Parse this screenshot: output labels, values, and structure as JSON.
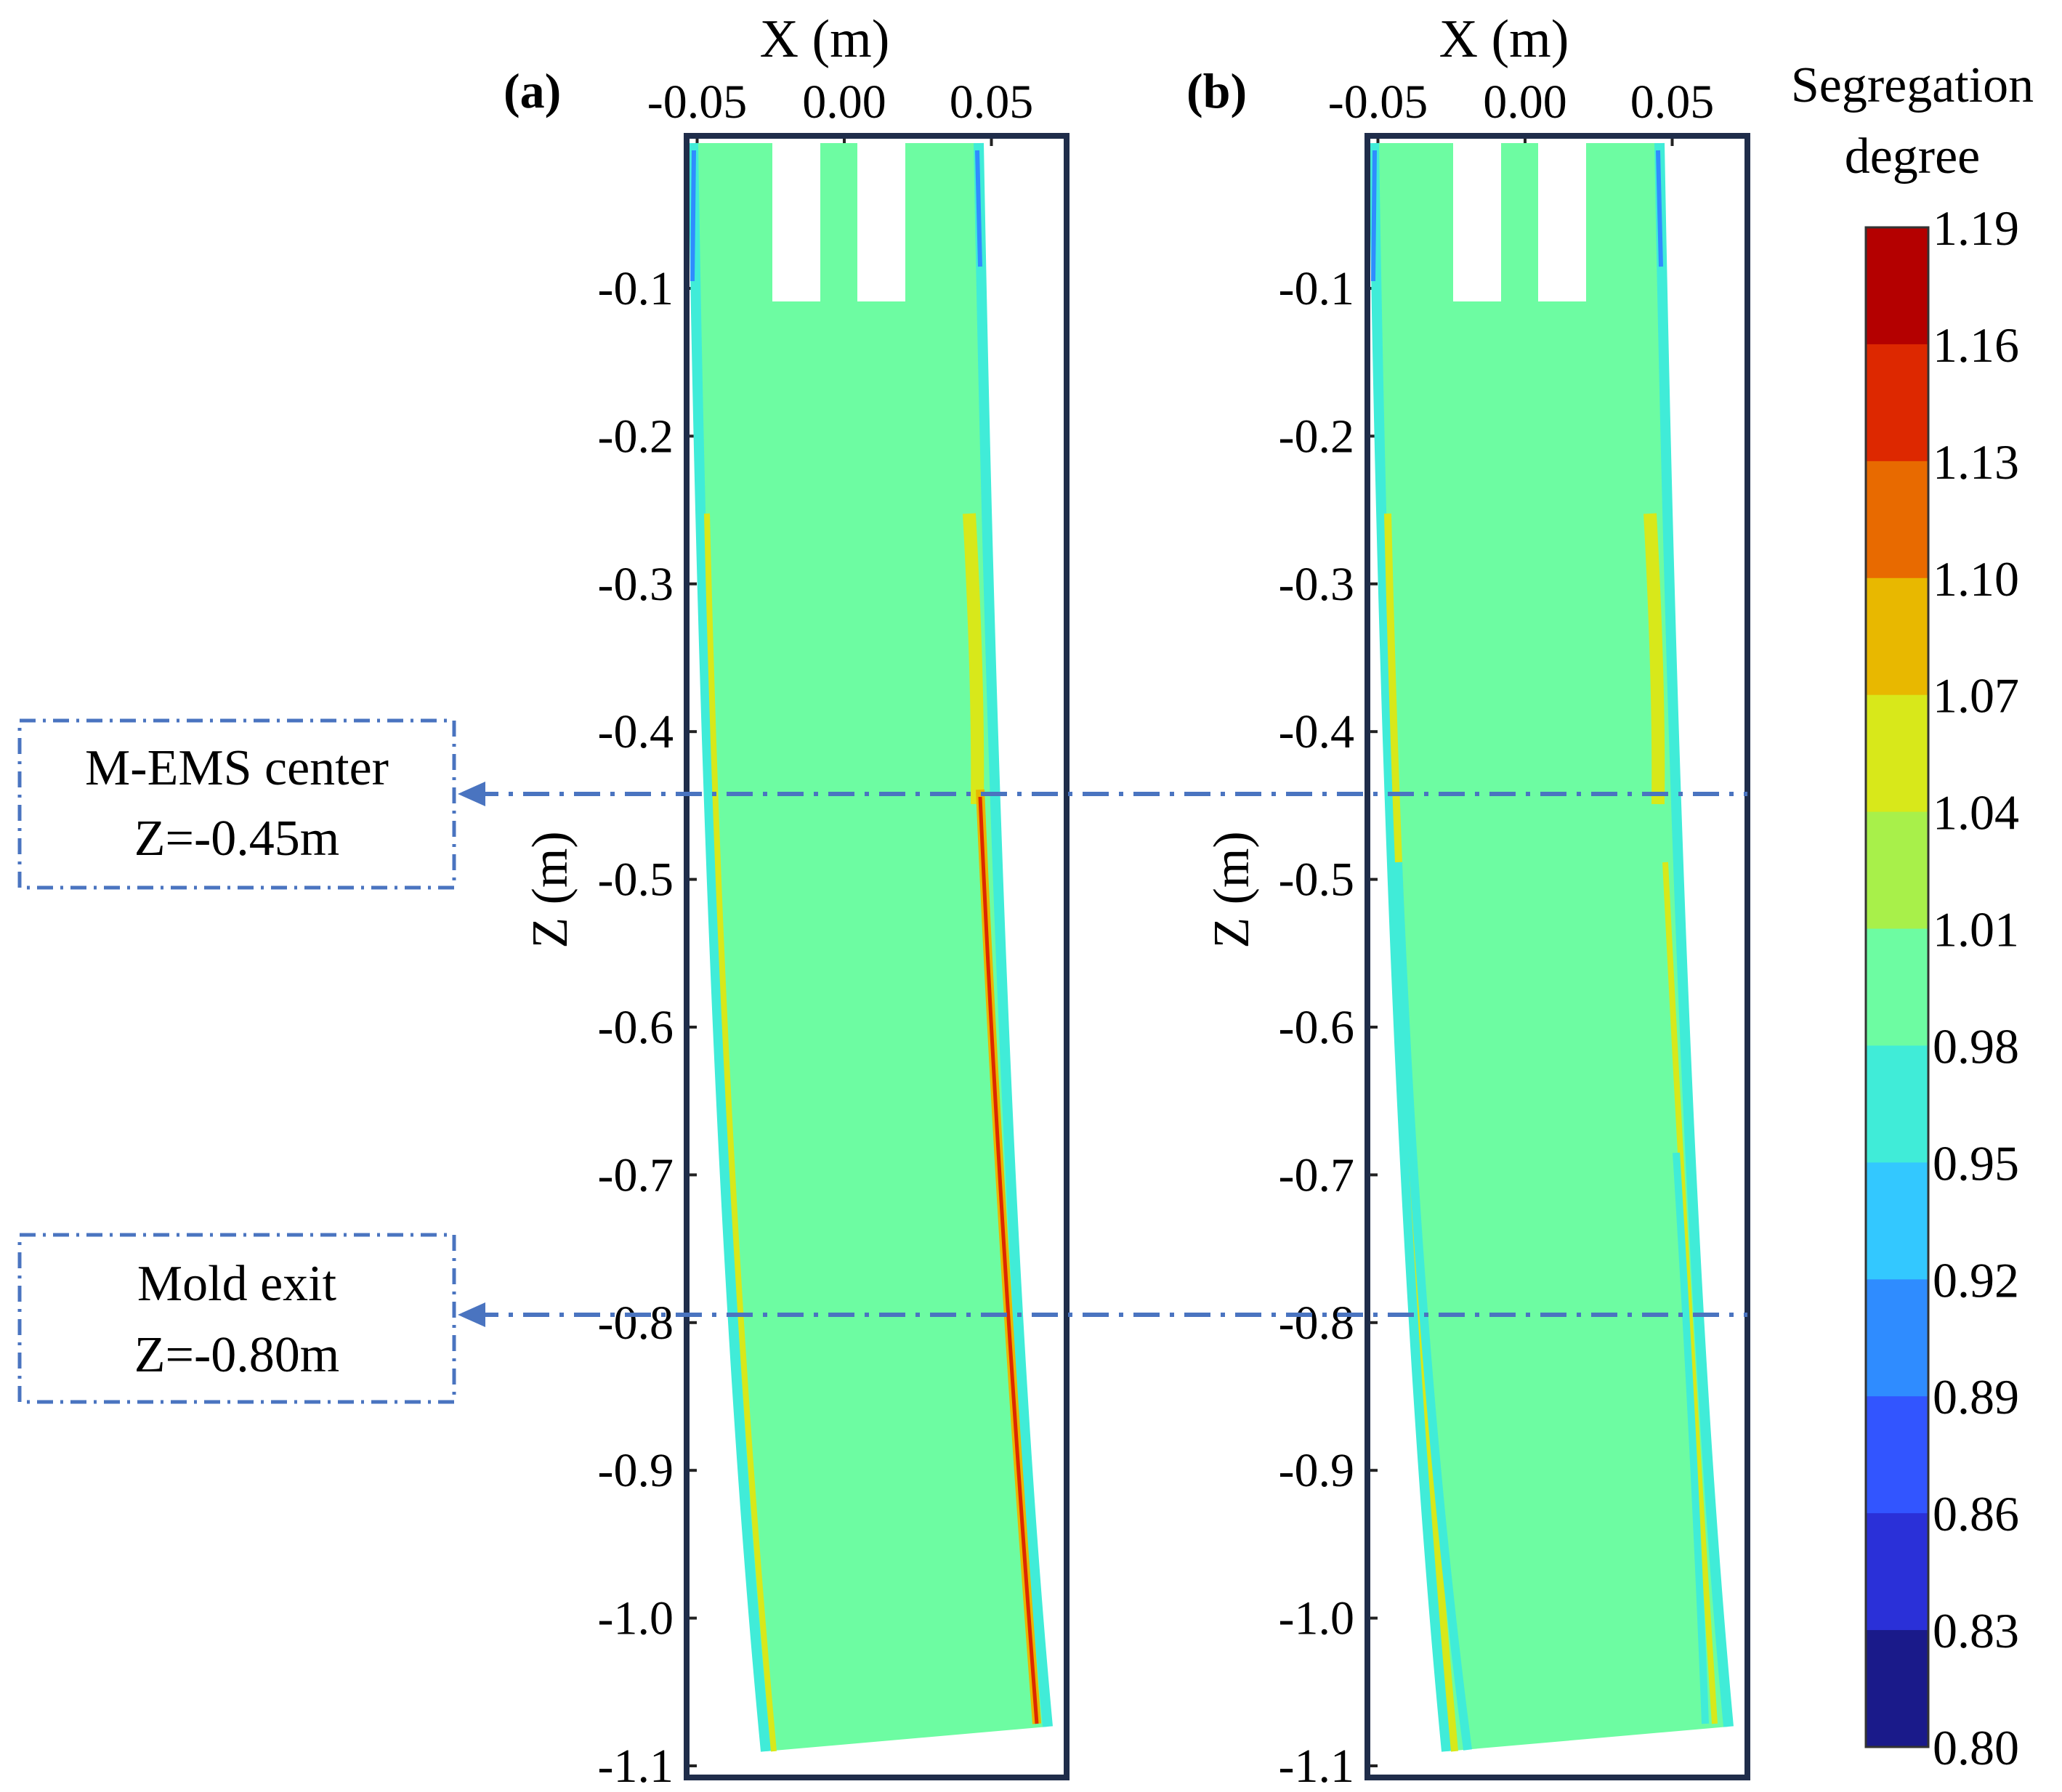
{
  "chart_data": {
    "type": "contour",
    "panels": [
      {
        "label": "(a)",
        "xlabel": "X (m)",
        "ylabel": "Z (m)",
        "x_ticks": [
          "-0.05",
          "0.00",
          "0.05"
        ],
        "y_ticks": [
          "-0.1",
          "-0.2",
          "-0.3",
          "-0.4",
          "-0.5",
          "-0.6",
          "-0.7",
          "-0.8",
          "-0.9",
          "-1.0",
          "-1.1"
        ],
        "xlim": [
          -0.05,
          0.075
        ],
        "ylim": [
          -1.1,
          0.0
        ]
      },
      {
        "label": "(b)",
        "xlabel": "X (m)",
        "ylabel": "Z (m)",
        "x_ticks": [
          "-0.05",
          "0.00",
          "0.05"
        ],
        "y_ticks": [
          "-0.1",
          "-0.2",
          "-0.3",
          "-0.4",
          "-0.5",
          "-0.6",
          "-0.7",
          "-0.8",
          "-0.9",
          "-1.0",
          "-1.1"
        ],
        "xlim": [
          -0.05,
          0.075
        ],
        "ylim": [
          -1.1,
          0.0
        ]
      }
    ],
    "colorbar": {
      "title_line1": "Segregation",
      "title_line2": "degree",
      "levels": [
        "1.19",
        "1.16",
        "1.13",
        "1.10",
        "1.07",
        "1.04",
        "1.01",
        "0.98",
        "0.95",
        "0.92",
        "0.89",
        "0.86",
        "0.83",
        "0.80"
      ],
      "colors": [
        "#b40000",
        "#dd2800",
        "#e86a00",
        "#e8b800",
        "#d8e81a",
        "#a8f04a",
        "#6dfca2",
        "#40ecd8",
        "#33c8ff",
        "#2f8cff",
        "#3255ff",
        "#2a30d8",
        "#1a1a8a"
      ]
    },
    "annotations": [
      {
        "line1": "M-EMS center",
        "line2": "Z=-0.45m",
        "z": -0.45
      },
      {
        "line1": "Mold exit",
        "line2": "Z=-0.80m",
        "z": -0.8
      }
    ],
    "field_color": "#6dfca2"
  }
}
